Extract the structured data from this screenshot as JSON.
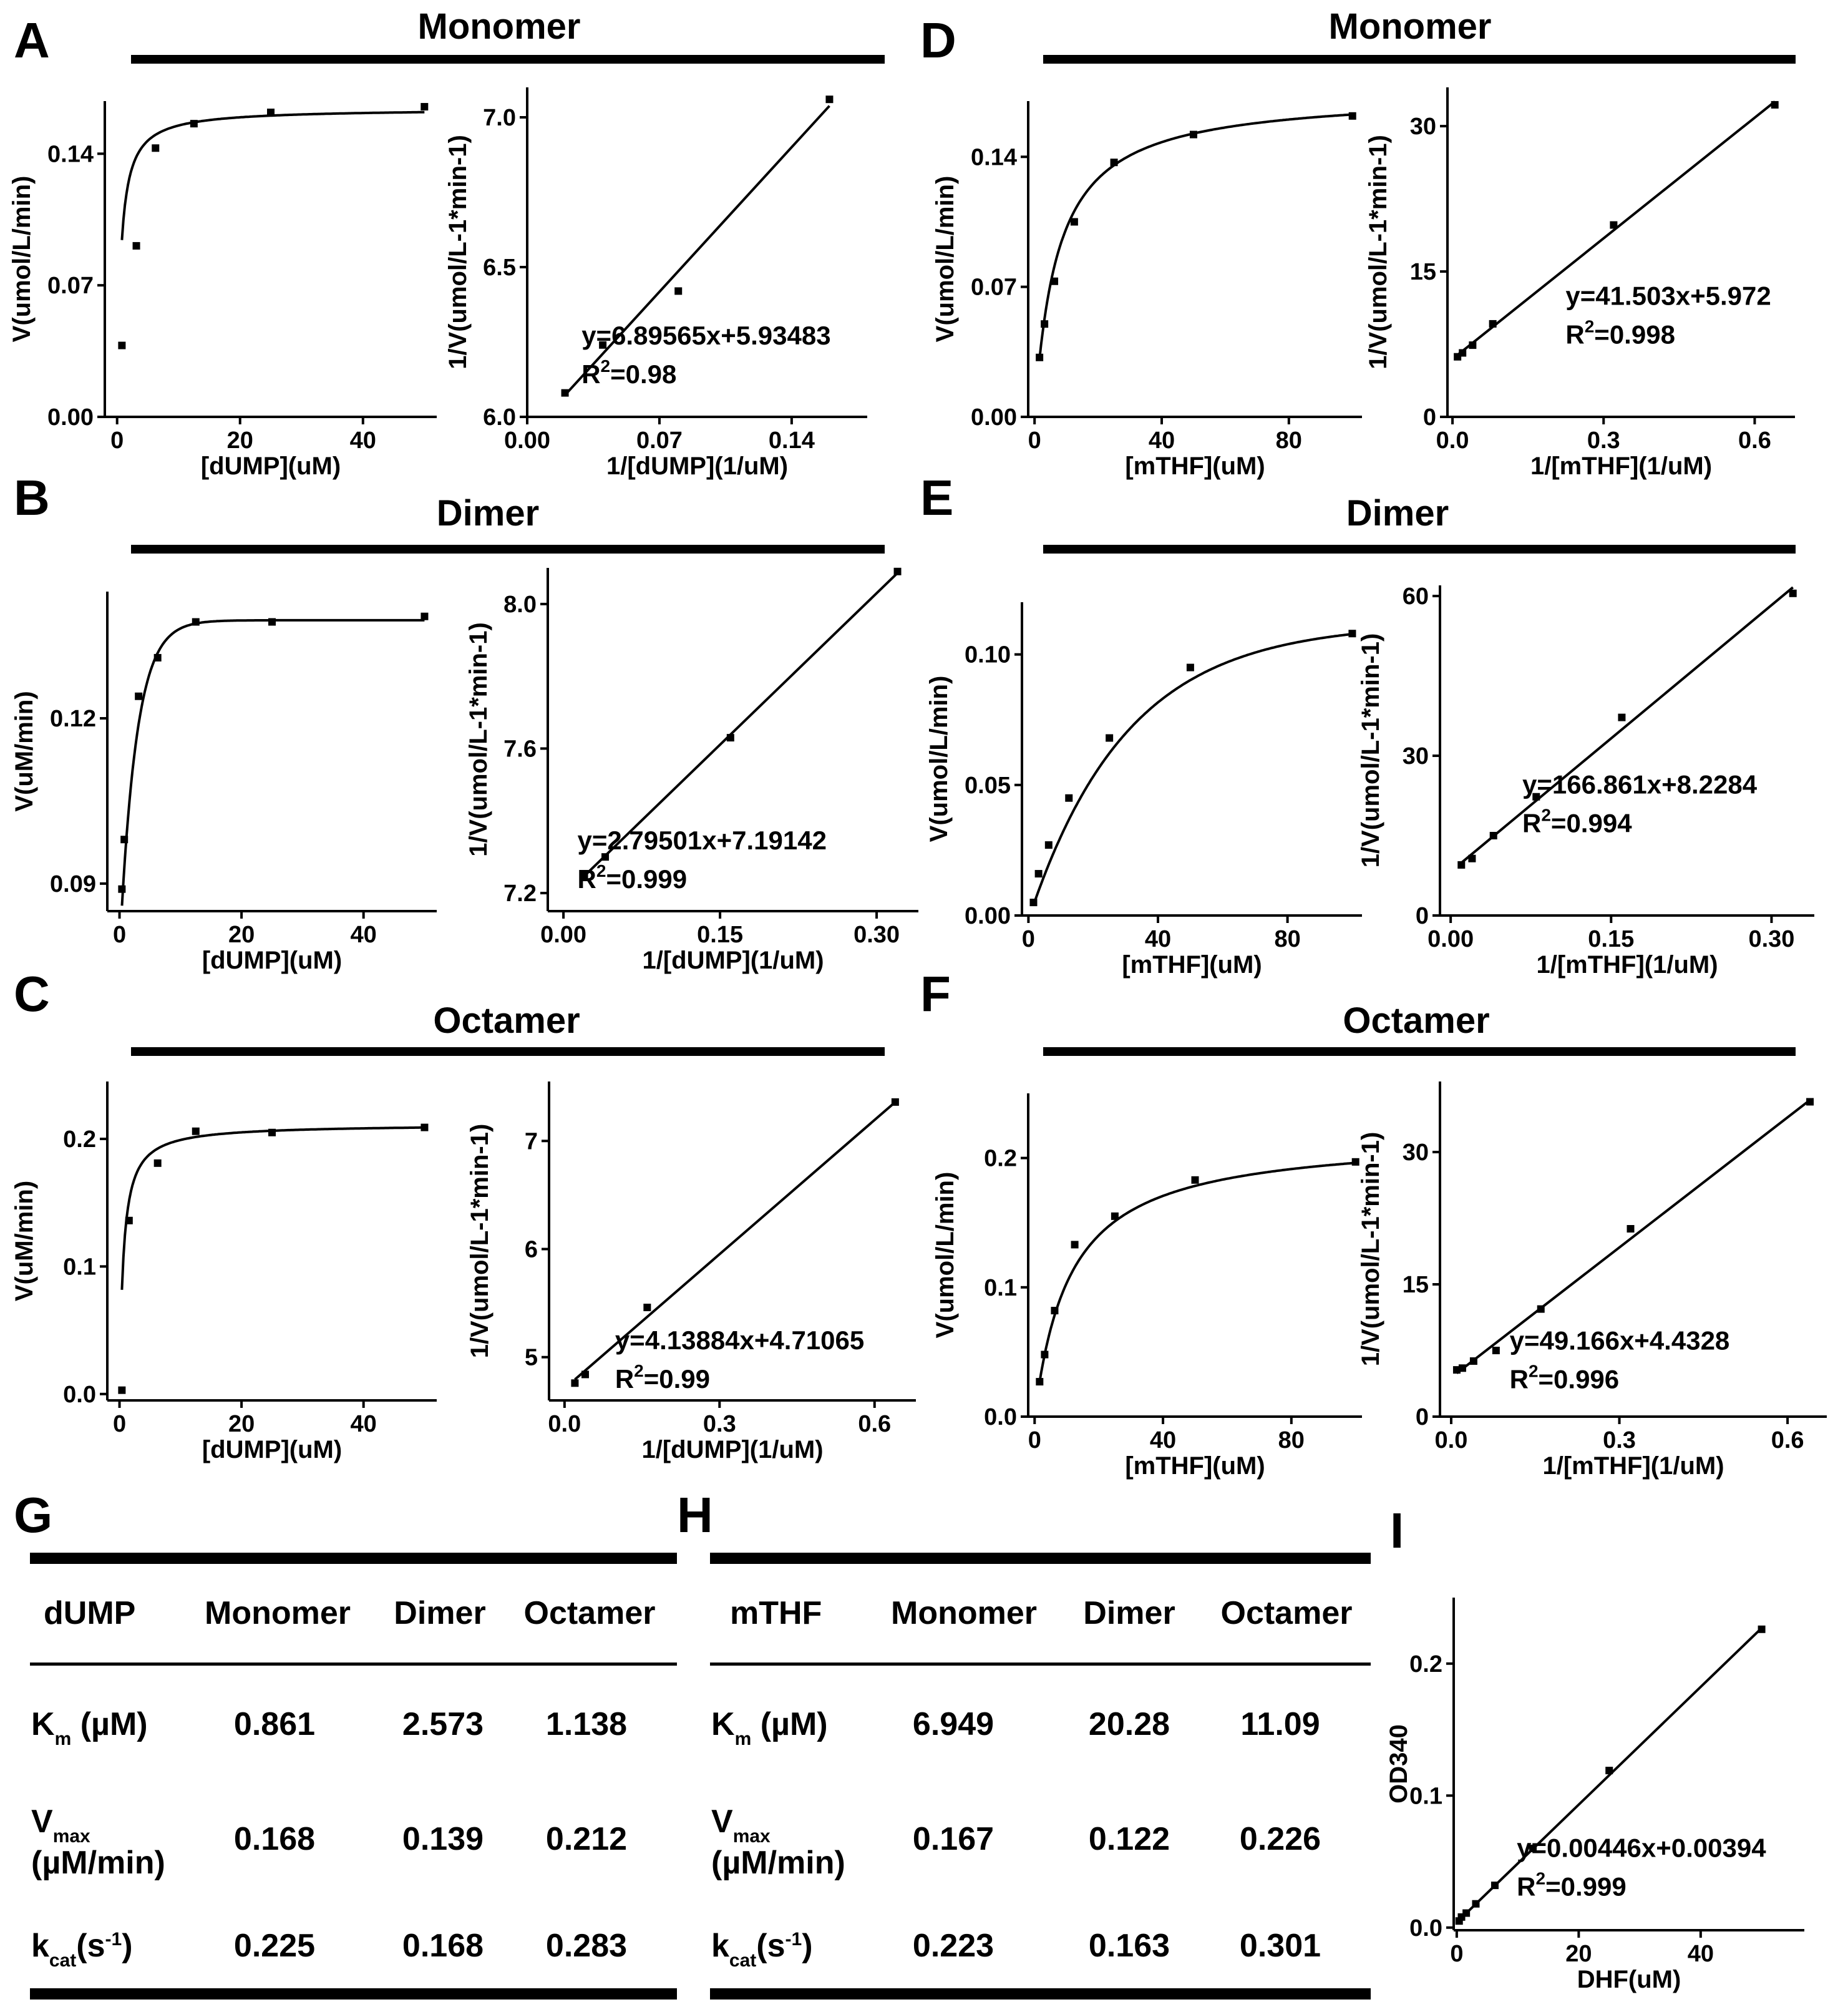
{
  "chart_data": [
    {
      "id": "A-left",
      "panel": "A",
      "type": "line",
      "title": "Monomer",
      "xlabel": "[dUMP](uM)",
      "ylabel": "V(umol/L/min)",
      "xlim": [
        -2,
        52
      ],
      "ylim": [
        0,
        0.168
      ],
      "xticks": [
        0,
        20,
        40
      ],
      "yticks": [
        0.0,
        0.07,
        0.14
      ],
      "xtick_labels": [
        "0",
        "20",
        "40"
      ],
      "ytick_labels": [
        "0.00",
        "0.07",
        "0.14"
      ],
      "points": {
        "x": [
          0.78,
          3.13,
          6.25,
          12.5,
          25,
          50
        ],
        "y": [
          0.038,
          0.091,
          0.143,
          0.156,
          0.162,
          0.165
        ]
      },
      "fit": {
        "kind": "mm",
        "vmax": 0.164,
        "k": 0.58
      }
    },
    {
      "id": "A-right",
      "panel": "A",
      "type": "scatter",
      "xlabel": "1/[dUMP](1/uM)",
      "ylabel": "1/V(umol/L-1*min-1)",
      "xlim": [
        0,
        0.18
      ],
      "ylim": [
        6.0,
        7.1
      ],
      "xticks": [
        0,
        0.07,
        0.14
      ],
      "yticks": [
        6.0,
        6.5,
        7.0
      ],
      "xtick_labels": [
        "0.00",
        "0.07",
        "0.14"
      ],
      "ytick_labels": [
        "6.0",
        "6.5",
        "7.0"
      ],
      "points": {
        "x": [
          0.02,
          0.04,
          0.08,
          0.16
        ],
        "y": [
          6.08,
          6.24,
          6.42,
          7.06
        ]
      },
      "fit": {
        "kind": "linear",
        "slope": 6.89565,
        "intercept": 5.93483,
        "x0": 0.02,
        "x1": 0.16
      },
      "equation": "y=6.89565x+5.93483",
      "r2_label": "R",
      "r2_exp": "2",
      "r2_value": "=0.98"
    },
    {
      "id": "D-left",
      "panel": "D",
      "type": "line",
      "title": "Monomer",
      "xlabel": "[mTHF](uM)",
      "ylabel": "V(umol/L/min)",
      "xlim": [
        -2,
        103
      ],
      "ylim": [
        0,
        0.17
      ],
      "xticks": [
        0,
        40,
        80
      ],
      "yticks": [
        0.0,
        0.07,
        0.14
      ],
      "xtick_labels": [
        "0",
        "40",
        "80"
      ],
      "ytick_labels": [
        "0.00",
        "0.07",
        "0.14"
      ],
      "points": {
        "x": [
          1.56,
          3.13,
          6.25,
          12.5,
          25,
          50,
          100
        ],
        "y": [
          0.032,
          0.05,
          0.073,
          0.105,
          0.137,
          0.152,
          0.162
        ]
      },
      "fit": {
        "kind": "mm",
        "vmax": 0.1745,
        "k": 7.2
      }
    },
    {
      "id": "D-right",
      "panel": "D",
      "type": "scatter",
      "xlabel": "1/[mTHF](1/uM)",
      "ylabel": "1/V(umol/L-1*min-1)",
      "xlim": [
        -0.01,
        0.68
      ],
      "ylim": [
        0,
        34
      ],
      "xticks": [
        0,
        0.3,
        0.6
      ],
      "yticks": [
        0,
        15,
        30
      ],
      "xtick_labels": [
        "0.0",
        "0.3",
        "0.6"
      ],
      "ytick_labels": [
        "0",
        "15",
        "30"
      ],
      "points": {
        "x": [
          0.01,
          0.02,
          0.04,
          0.08,
          0.32,
          0.64
        ],
        "y": [
          6.2,
          6.6,
          7.4,
          9.6,
          19.8,
          32.2
        ]
      },
      "fit": {
        "kind": "linear",
        "slope": 41.503,
        "intercept": 5.972,
        "x0": 0.01,
        "x1": 0.64
      },
      "equation": "y=41.503x+5.972",
      "r2_label": "R",
      "r2_exp": "2",
      "r2_value": "=0.998"
    },
    {
      "id": "B-left",
      "panel": "B",
      "type": "line",
      "title": "Dimer",
      "xlabel": "[dUMP](uM)",
      "ylabel": "V(uM/min)",
      "xlim": [
        -2,
        52
      ],
      "ylim": [
        0.085,
        0.143
      ],
      "xticks": [
        0,
        20,
        40
      ],
      "yticks": [
        0.09,
        0.12
      ],
      "xtick_labels": [
        "0",
        "20",
        "40"
      ],
      "ytick_labels": [
        "0.09",
        "0.12"
      ],
      "points": {
        "x": [
          0.39,
          0.78,
          3.13,
          6.25,
          12.5,
          25,
          50
        ],
        "y": [
          0.089,
          0.098,
          0.124,
          0.131,
          0.1375,
          0.1375,
          0.1385
        ]
      },
      "fit": {
        "kind": "exp",
        "ymax": 0.1378,
        "base": 0.086,
        "k": 0.37,
        "x0": 0.4
      }
    },
    {
      "id": "B-right",
      "panel": "B",
      "type": "scatter",
      "xlabel": "1/[dUMP](1/uM)",
      "ylabel": "1/V(umol/L-1*min-1)",
      "xlim": [
        -0.015,
        0.34
      ],
      "ylim": [
        7.15,
        8.1
      ],
      "xticks": [
        0,
        0.15,
        0.3
      ],
      "yticks": [
        7.2,
        7.6,
        8.0
      ],
      "xtick_labels": [
        "0.00",
        "0.15",
        "0.30"
      ],
      "ytick_labels": [
        "7.2",
        "7.6",
        "8.0"
      ],
      "points": {
        "x": [
          0.02,
          0.04,
          0.16,
          0.32
        ],
        "y": [
          7.25,
          7.3,
          7.63,
          8.09
        ]
      },
      "fit": {
        "kind": "linear",
        "slope": 2.79501,
        "intercept": 7.19142,
        "x0": 0.02,
        "x1": 0.32
      },
      "equation": "y=2.79501x+7.19142",
      "r2_label": "R",
      "r2_exp": "2",
      "r2_value": "=0.999"
    },
    {
      "id": "E-left",
      "panel": "E",
      "type": "line",
      "title": "Dimer",
      "xlabel": "[mTHF](uM)",
      "ylabel": "V(umol/L/min)",
      "xlim": [
        -2,
        103
      ],
      "ylim": [
        0,
        0.12
      ],
      "xticks": [
        0,
        40,
        80
      ],
      "yticks": [
        0.0,
        0.05,
        0.1
      ],
      "xtick_labels": [
        "0",
        "40",
        "80"
      ],
      "ytick_labels": [
        "0.00",
        "0.05",
        "0.10"
      ],
      "points": {
        "x": [
          1.56,
          3.13,
          6.25,
          12.5,
          25,
          50,
          100
        ],
        "y": [
          0.005,
          0.016,
          0.027,
          0.045,
          0.068,
          0.095,
          0.108
        ]
      },
      "fit": {
        "kind": "exp",
        "ymax": 0.112,
        "base": 0.004,
        "k": 0.033,
        "x0": 1.56
      }
    },
    {
      "id": "E-right",
      "panel": "E",
      "type": "scatter",
      "xlabel": "1/[mTHF](1/uM)",
      "ylabel": "1/V(umol/L-1*min-1)",
      "xlim": [
        -0.01,
        0.34
      ],
      "ylim": [
        0,
        62
      ],
      "xticks": [
        0,
        0.15,
        0.3
      ],
      "yticks": [
        0,
        30,
        60
      ],
      "xtick_labels": [
        "0.00",
        "0.15",
        "0.30"
      ],
      "ytick_labels": [
        "0",
        "30",
        "60"
      ],
      "points": {
        "x": [
          0.01,
          0.02,
          0.04,
          0.08,
          0.16,
          0.32
        ],
        "y": [
          9.5,
          10.7,
          15.0,
          22.3,
          37.2,
          60.5
        ]
      },
      "fit": {
        "kind": "linear",
        "slope": 166.861,
        "intercept": 8.2284,
        "x0": 0.01,
        "x1": 0.32
      },
      "equation": "y=166.861x+8.2284",
      "r2_label": "R",
      "r2_exp": "2",
      "r2_value": "=0.994"
    },
    {
      "id": "C-left",
      "panel": "C",
      "type": "line",
      "title": "Octamer",
      "xlabel": "[dUMP](uM)",
      "ylabel": "V(uM/min)",
      "xlim": [
        -2,
        52
      ],
      "ylim": [
        -0.005,
        0.245
      ],
      "xticks": [
        0,
        20,
        40
      ],
      "yticks": [
        0.0,
        0.1,
        0.2
      ],
      "xtick_labels": [
        "0",
        "20",
        "40"
      ],
      "ytick_labels": [
        "0.0",
        "0.1",
        "0.2"
      ],
      "points": {
        "x": [
          0.39,
          1.56,
          6.25,
          12.5,
          25,
          50
        ],
        "y": [
          0.003,
          0.136,
          0.181,
          0.206,
          0.205,
          0.209
        ]
      },
      "fit": {
        "kind": "mm",
        "vmax": 0.2115,
        "k": 0.62,
        "x0": 0.39
      }
    },
    {
      "id": "C-right",
      "panel": "C",
      "type": "scatter",
      "xlabel": "1/[dUMP](1/uM)",
      "ylabel": "1/V(umol/L-1*min-1)",
      "xlim": [
        -0.03,
        0.68
      ],
      "ylim": [
        4.6,
        7.55
      ],
      "xticks": [
        0,
        0.3,
        0.6
      ],
      "yticks": [
        5,
        6,
        7
      ],
      "xtick_labels": [
        "0.0",
        "0.3",
        "0.6"
      ],
      "ytick_labels": [
        "5",
        "6",
        "7"
      ],
      "points": {
        "x": [
          0.02,
          0.04,
          0.16,
          0.64
        ],
        "y": [
          4.76,
          4.84,
          5.46,
          7.36
        ]
      },
      "fit": {
        "kind": "linear",
        "slope": 4.13884,
        "intercept": 4.71065,
        "x0": 0.02,
        "x1": 0.64
      },
      "equation": "y=4.13884x+4.71065",
      "r2_label": "R",
      "r2_exp": "2",
      "r2_value": "=0.99"
    },
    {
      "id": "F-left",
      "panel": "F",
      "type": "line",
      "title": "Octamer",
      "xlabel": "[mTHF](uM)",
      "ylabel": "V(umol/L/min)",
      "xlim": [
        -2,
        102
      ],
      "ylim": [
        0,
        0.25
      ],
      "xticks": [
        0,
        40,
        80
      ],
      "yticks": [
        0.0,
        0.1,
        0.2
      ],
      "xtick_labels": [
        "0",
        "40",
        "80"
      ],
      "ytick_labels": [
        "0.0",
        "0.1",
        "0.2"
      ],
      "points": {
        "x": [
          1.56,
          3.13,
          6.25,
          12.5,
          25,
          50,
          100
        ],
        "y": [
          0.027,
          0.048,
          0.082,
          0.133,
          0.155,
          0.183,
          0.197
        ]
      },
      "fit": {
        "kind": "mm",
        "vmax": 0.218,
        "k": 11.09,
        "x0": 1.56
      }
    },
    {
      "id": "F-right",
      "panel": "F",
      "type": "scatter",
      "xlabel": "1/[mTHF](1/uM)",
      "ylabel": "1/V(umol/L-1*min-1)",
      "xlim": [
        -0.02,
        0.67
      ],
      "ylim": [
        0,
        38
      ],
      "xticks": [
        0,
        0.3,
        0.6
      ],
      "yticks": [
        0,
        15,
        30
      ],
      "xtick_labels": [
        "0.0",
        "0.3",
        "0.6"
      ],
      "ytick_labels": [
        "0",
        "15",
        "30"
      ],
      "points": {
        "x": [
          0.01,
          0.02,
          0.04,
          0.08,
          0.16,
          0.32,
          0.64
        ],
        "y": [
          5.3,
          5.5,
          6.3,
          7.5,
          12.2,
          21.3,
          35.7
        ]
      },
      "fit": {
        "kind": "linear",
        "slope": 49.166,
        "intercept": 4.4328,
        "x0": 0.01,
        "x1": 0.64
      },
      "equation": "y=49.166x+4.4328",
      "r2_label": "R",
      "r2_exp": "2",
      "r2_value": "=0.996"
    },
    {
      "id": "I",
      "panel": "I",
      "type": "scatter",
      "xlabel": "DHF(uM)",
      "ylabel": "OD340",
      "xlim": [
        -0.5,
        57
      ],
      "ylim": [
        -0.002,
        0.25
      ],
      "xticks": [
        0,
        20,
        40
      ],
      "yticks": [
        0.0,
        0.1,
        0.2
      ],
      "xtick_labels": [
        "0",
        "20",
        "40"
      ],
      "ytick_labels": [
        "0.0",
        "0.1",
        "0.2"
      ],
      "points": {
        "x": [
          0.39,
          0.78,
          1.56,
          3.13,
          6.25,
          12.5,
          25,
          50
        ],
        "y": [
          0.005,
          0.008,
          0.011,
          0.018,
          0.032,
          0.06,
          0.119,
          0.226
        ]
      },
      "fit": {
        "kind": "linear",
        "slope": 0.00446,
        "intercept": 0.00394,
        "x0": 0,
        "x1": 50
      },
      "equation": "y=0.00446x+0.00394",
      "r2_label": "R",
      "r2_exp": "2",
      "r2_value": "=0.999"
    }
  ],
  "panels": {
    "letters": [
      "A",
      "B",
      "C",
      "D",
      "E",
      "F",
      "G",
      "H",
      "I"
    ],
    "titles": [
      "Monomer",
      "Dimer",
      "Octamer",
      "Monomer",
      "Dimer",
      "Octamer"
    ]
  },
  "tables": [
    {
      "panel": "G",
      "headers": [
        "dUMP",
        "Monomer",
        "Dimer",
        "Octamer"
      ],
      "rows": [
        {
          "label_main": "K",
          "label_sub": "m",
          "label_rest": " (µM)",
          "values": [
            "0.861",
            "2.573",
            "1.138"
          ]
        },
        {
          "label_main": "V",
          "label_sub": "max",
          "label_line2": "(µM/min)",
          "values": [
            "0.168",
            "0.139",
            "0.212"
          ]
        },
        {
          "label_main": "k",
          "label_sub": "cat",
          "label_rest": "(s",
          "label_sup": "-1",
          "label_end": ")",
          "values": [
            "0.225",
            "0.168",
            "0.283"
          ]
        }
      ]
    },
    {
      "panel": "H",
      "headers": [
        "mTHF",
        "Monomer",
        "Dimer",
        "Octamer"
      ],
      "rows": [
        {
          "label_main": "K",
          "label_sub": "m",
          "label_rest": " (µM)",
          "values": [
            "6.949",
            "20.28",
            "11.09"
          ]
        },
        {
          "label_main": "V",
          "label_sub": "max",
          "label_line2": "(µM/min)",
          "values": [
            "0.167",
            "0.122",
            "0.226"
          ]
        },
        {
          "label_main": "k",
          "label_sub": "cat",
          "label_rest": "(s",
          "label_sup": "-1",
          "label_end": ")",
          "values": [
            "0.223",
            "0.163",
            "0.301"
          ]
        }
      ]
    }
  ],
  "colors": {
    "ink": "#000000",
    "letter": "#231f20",
    "background": "#ffffff"
  }
}
